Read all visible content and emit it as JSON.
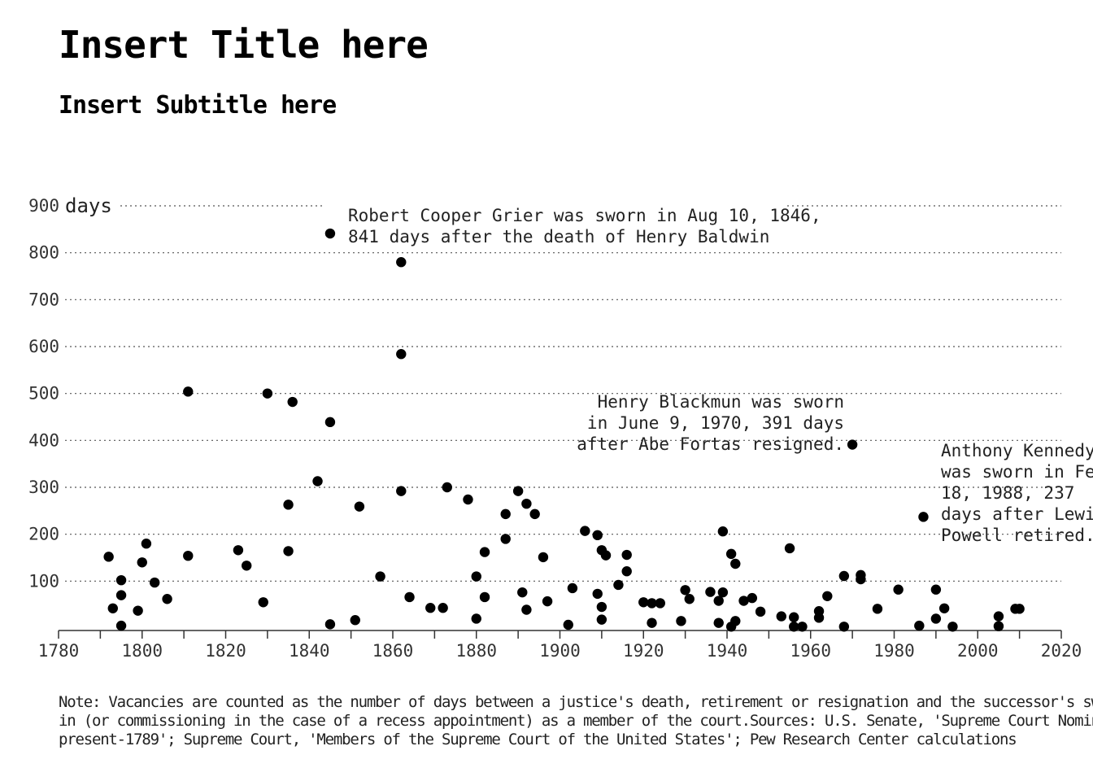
{
  "chart_data": {
    "type": "scatter",
    "title": "Insert Title here",
    "subtitle": "Insert Subtitle here",
    "xlabel": "",
    "ylabel": "days",
    "xlim": [
      1780,
      2020
    ],
    "ylim": [
      0,
      900
    ],
    "x_ticks": [
      "1780",
      "1800",
      "1820",
      "1840",
      "1860",
      "1880",
      "1900",
      "1920",
      "1940",
      "1960",
      "1980",
      "2000",
      "2020"
    ],
    "y_ticks": [
      "100",
      "200",
      "300",
      "400",
      "500",
      "600",
      "700",
      "800",
      "900"
    ],
    "grid": "horizontal-dotted",
    "color": "#000000",
    "points": [
      [
        1792,
        152
      ],
      [
        1793,
        42
      ],
      [
        1795,
        102
      ],
      [
        1795,
        70
      ],
      [
        1795,
        5
      ],
      [
        1799,
        37
      ],
      [
        1800,
        140
      ],
      [
        1801,
        180
      ],
      [
        1803,
        97
      ],
      [
        1806,
        62
      ],
      [
        1811,
        504
      ],
      [
        1811,
        154
      ],
      [
        1823,
        166
      ],
      [
        1825,
        133
      ],
      [
        1829,
        55
      ],
      [
        1830,
        500
      ],
      [
        1835,
        263
      ],
      [
        1835,
        164
      ],
      [
        1836,
        482
      ],
      [
        1842,
        313
      ],
      [
        1845,
        841
      ],
      [
        1845,
        439
      ],
      [
        1845,
        8
      ],
      [
        1851,
        17
      ],
      [
        1852,
        259
      ],
      [
        1857,
        110
      ],
      [
        1862,
        780
      ],
      [
        1862,
        584
      ],
      [
        1862,
        292
      ],
      [
        1864,
        66
      ],
      [
        1869,
        43
      ],
      [
        1872,
        43
      ],
      [
        1873,
        300
      ],
      [
        1878,
        274
      ],
      [
        1880,
        110
      ],
      [
        1880,
        20
      ],
      [
        1882,
        162
      ],
      [
        1882,
        66
      ],
      [
        1887,
        243
      ],
      [
        1887,
        190
      ],
      [
        1890,
        292
      ],
      [
        1891,
        76
      ],
      [
        1892,
        265
      ],
      [
        1892,
        39
      ],
      [
        1894,
        243
      ],
      [
        1896,
        151
      ],
      [
        1897,
        57
      ],
      [
        1902,
        7
      ],
      [
        1903,
        85
      ],
      [
        1906,
        207
      ],
      [
        1909,
        198
      ],
      [
        1909,
        73
      ],
      [
        1910,
        166
      ],
      [
        1910,
        45
      ],
      [
        1910,
        18
      ],
      [
        1911,
        155
      ],
      [
        1914,
        92
      ],
      [
        1916,
        156
      ],
      [
        1916,
        121
      ],
      [
        1920,
        55
      ],
      [
        1922,
        53
      ],
      [
        1922,
        11
      ],
      [
        1924,
        53
      ],
      [
        1929,
        15
      ],
      [
        1930,
        81
      ],
      [
        1931,
        62
      ],
      [
        1936,
        77
      ],
      [
        1938,
        58
      ],
      [
        1938,
        11
      ],
      [
        1939,
        206
      ],
      [
        1939,
        76
      ],
      [
        1941,
        158
      ],
      [
        1941,
        3
      ],
      [
        1942,
        137
      ],
      [
        1942,
        15
      ],
      [
        1944,
        58
      ],
      [
        1946,
        64
      ],
      [
        1948,
        35
      ],
      [
        1953,
        25
      ],
      [
        1955,
        170
      ],
      [
        1956,
        23
      ],
      [
        1956,
        3
      ],
      [
        1958,
        3
      ],
      [
        1962,
        36
      ],
      [
        1962,
        22
      ],
      [
        1964,
        68
      ],
      [
        1968,
        111
      ],
      [
        1968,
        3
      ],
      [
        1970,
        391
      ],
      [
        1972,
        113
      ],
      [
        1972,
        104
      ],
      [
        1976,
        41
      ],
      [
        1981,
        82
      ],
      [
        1986,
        5
      ],
      [
        1987,
        237
      ],
      [
        1990,
        82
      ],
      [
        1990,
        20
      ],
      [
        1992,
        42
      ],
      [
        1994,
        3
      ],
      [
        2005,
        25
      ],
      [
        2005,
        4
      ],
      [
        2009,
        41
      ],
      [
        2010,
        41
      ]
    ],
    "annotations": [
      {
        "lines": [
          "Robert Cooper Grier was sworn in Aug 10, 1846,",
          "841 days after the death of Henry Baldwin"
        ]
      },
      {
        "lines": [
          "Henry Blackmun was sworn",
          "in June 9, 1970, 391 days",
          "after Abe Fortas resigned."
        ]
      },
      {
        "lines": [
          "Anthony Kennedy",
          "was sworn in Feb",
          "18, 1988, 237",
          "days after Lewis",
          "Powell retired."
        ]
      }
    ],
    "note_lines": [
      "Note: Vacancies are counted as the number of days between a justice's death, retirement or resignation and the successor's swearing",
      "in (or commissioning in the case of a recess appointment) as a member of the court.Sources: U.S. Senate, 'Supreme Court Nominations,",
      "present-1789'; Supreme Court, 'Members of the Supreme Court of the United States'; Pew Research Center calculations"
    ]
  }
}
